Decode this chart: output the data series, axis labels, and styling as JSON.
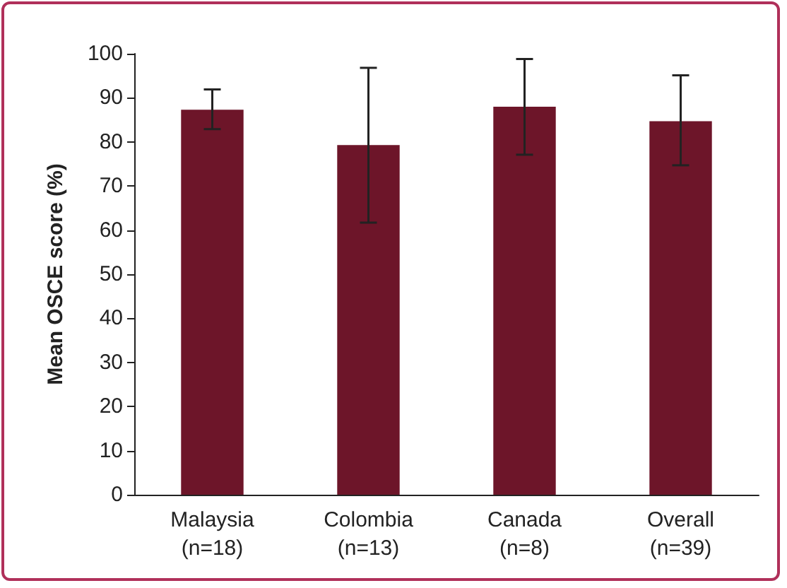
{
  "chart_data": {
    "type": "bar",
    "ylabel": "Mean OSCE score (%)",
    "categories": [
      "Malaysia\n(n=18)",
      "Colombia\n(n=13)",
      "Canada\n(n=8)",
      "Overall\n(n=39)"
    ],
    "values": [
      87.3,
      79.3,
      88,
      84.7
    ],
    "errors": [
      [
        82.9,
        91.9
      ],
      [
        61.7,
        96.8
      ],
      [
        77.1,
        98.8
      ],
      [
        74.7,
        95.1
      ]
    ],
    "color": "#6d1529",
    "ylim": [
      0,
      100
    ],
    "yticks": [
      0,
      10,
      20,
      30,
      40,
      50,
      60,
      70,
      80,
      90,
      100
    ],
    "grid": false
  }
}
